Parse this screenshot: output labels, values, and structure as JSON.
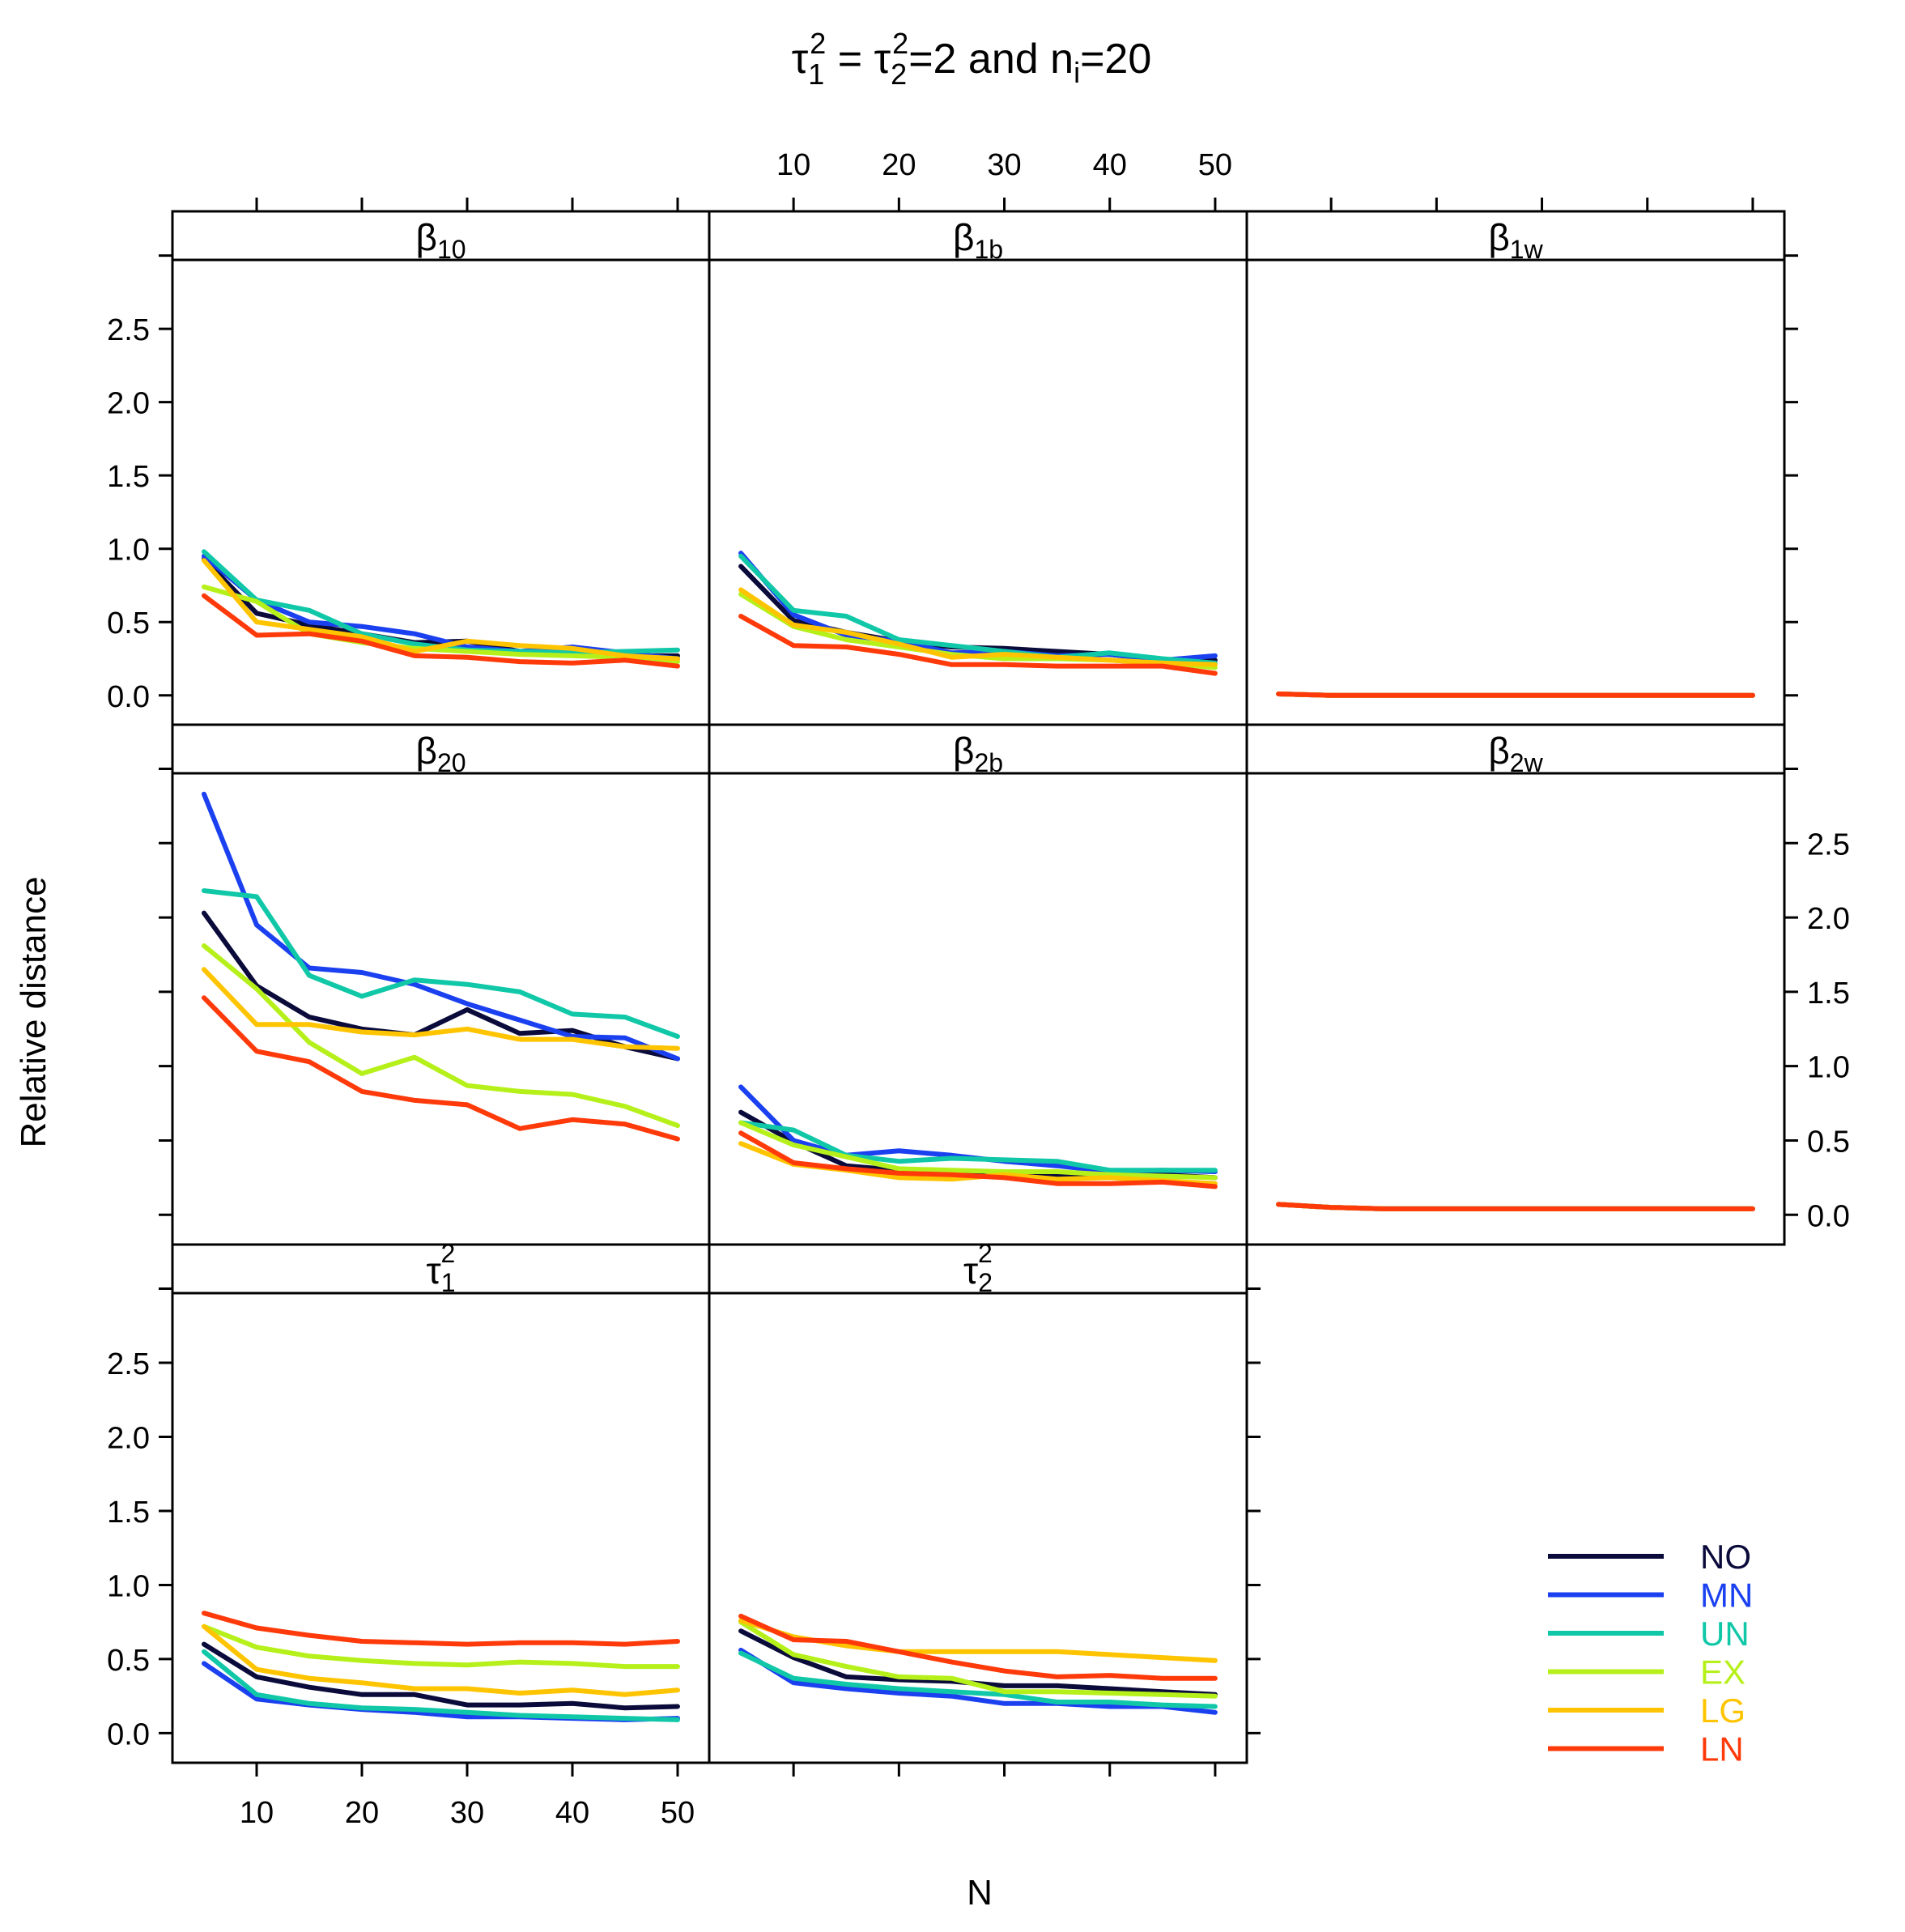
{
  "chart_data": {
    "type": "line",
    "title": "τ₁² = τ₂²=2 and nᵢ=20",
    "title_parts": {
      "sym1": "τ",
      "sup1": "2",
      "sub1": "1",
      "eq": " = ",
      "sym2": "τ",
      "sup2": "2",
      "sub2": "2",
      "rest1": "=2 and n",
      "sub3": "i",
      "rest2": "=20"
    },
    "xlabel": "N",
    "ylabel": "Relative distance",
    "xlim": [
      2,
      53
    ],
    "ylim": [
      -0.2,
      2.97
    ],
    "x_ticks": [
      10,
      20,
      30,
      40,
      50
    ],
    "y_ticks": [
      0.0,
      0.5,
      1.0,
      1.5,
      2.0,
      2.5
    ],
    "y_tick_labels": [
      "0.0",
      "0.5",
      "1.0",
      "1.5",
      "2.0",
      "2.5"
    ],
    "x_tick_labels": [
      "10",
      "20",
      "30",
      "40",
      "50"
    ],
    "x": [
      5,
      10,
      15,
      20,
      25,
      30,
      35,
      40,
      45,
      50
    ],
    "legend": [
      {
        "name": "NO",
        "color": "#0b0b3b"
      },
      {
        "name": "MN",
        "color": "#1a40f0"
      },
      {
        "name": "UN",
        "color": "#10c8a8"
      },
      {
        "name": "EX",
        "color": "#b6f01a"
      },
      {
        "name": "LG",
        "color": "#ffc400"
      },
      {
        "name": "LN",
        "color": "#ff3a0a"
      }
    ],
    "panels": [
      {
        "key": "b10",
        "strip": {
          "sym": "β",
          "sub": "10",
          "sup": ""
        },
        "series": [
          {
            "name": "NO",
            "values": [
              0.93,
              0.56,
              0.48,
              0.42,
              0.36,
              0.37,
              0.3,
              0.3,
              0.27,
              0.27
            ]
          },
          {
            "name": "MN",
            "values": [
              0.95,
              0.65,
              0.5,
              0.47,
              0.42,
              0.33,
              0.3,
              0.33,
              0.29,
              0.25
            ]
          },
          {
            "name": "UN",
            "values": [
              0.98,
              0.65,
              0.58,
              0.42,
              0.35,
              0.31,
              0.3,
              0.29,
              0.3,
              0.31
            ]
          },
          {
            "name": "EX",
            "values": [
              0.74,
              0.64,
              0.42,
              0.36,
              0.32,
              0.3,
              0.28,
              0.27,
              0.26,
              0.23
            ]
          },
          {
            "name": "LG",
            "values": [
              0.92,
              0.5,
              0.45,
              0.4,
              0.3,
              0.37,
              0.34,
              0.32,
              0.27,
              0.25
            ]
          },
          {
            "name": "LN",
            "values": [
              0.68,
              0.41,
              0.42,
              0.37,
              0.27,
              0.26,
              0.23,
              0.22,
              0.24,
              0.2
            ]
          }
        ]
      },
      {
        "key": "b1b",
        "strip": {
          "sym": "β",
          "sub": "1b",
          "sup": ""
        },
        "series": [
          {
            "name": "NO",
            "values": [
              0.88,
              0.51,
              0.43,
              0.37,
              0.33,
              0.32,
              0.3,
              0.28,
              0.24,
              0.24
            ]
          },
          {
            "name": "MN",
            "values": [
              0.97,
              0.55,
              0.41,
              0.37,
              0.29,
              0.3,
              0.27,
              0.28,
              0.24,
              0.27
            ]
          },
          {
            "name": "UN",
            "values": [
              0.95,
              0.58,
              0.54,
              0.38,
              0.34,
              0.3,
              0.26,
              0.29,
              0.25,
              0.22
            ]
          },
          {
            "name": "EX",
            "values": [
              0.69,
              0.47,
              0.38,
              0.33,
              0.28,
              0.25,
              0.25,
              0.24,
              0.22,
              0.19
            ]
          },
          {
            "name": "LG",
            "values": [
              0.72,
              0.48,
              0.43,
              0.35,
              0.26,
              0.28,
              0.26,
              0.24,
              0.22,
              0.21
            ]
          },
          {
            "name": "LN",
            "values": [
              0.54,
              0.34,
              0.33,
              0.28,
              0.21,
              0.21,
              0.2,
              0.2,
              0.2,
              0.15
            ]
          }
        ]
      },
      {
        "key": "b1w",
        "strip": {
          "sym": "β",
          "sub": "1w",
          "sup": ""
        },
        "series": [
          {
            "name": "NO",
            "values": [
              0.01,
              0.0,
              0.0,
              0.0,
              0.0,
              0.0,
              0.0,
              0.0,
              0.0,
              0.0
            ]
          },
          {
            "name": "MN",
            "values": [
              0.01,
              0.0,
              0.0,
              0.0,
              0.0,
              0.0,
              0.0,
              0.0,
              0.0,
              0.0
            ]
          },
          {
            "name": "UN",
            "values": [
              0.01,
              0.0,
              0.0,
              0.0,
              0.0,
              0.0,
              0.0,
              0.0,
              0.0,
              0.0
            ]
          },
          {
            "name": "EX",
            "values": [
              0.01,
              0.0,
              0.0,
              0.0,
              0.0,
              0.0,
              0.0,
              0.0,
              0.0,
              0.0
            ]
          },
          {
            "name": "LG",
            "values": [
              0.01,
              0.0,
              0.0,
              0.0,
              0.0,
              0.0,
              0.0,
              0.0,
              0.0,
              0.0
            ]
          },
          {
            "name": "LN",
            "values": [
              0.01,
              0.0,
              0.0,
              0.0,
              0.0,
              0.0,
              0.0,
              0.0,
              0.0,
              0.0
            ]
          }
        ]
      },
      {
        "key": "b20",
        "strip": {
          "sym": "β",
          "sub": "20",
          "sup": ""
        },
        "series": [
          {
            "name": "NO",
            "values": [
              2.03,
              1.54,
              1.33,
              1.25,
              1.21,
              1.38,
              1.22,
              1.24,
              1.13,
              1.05
            ]
          },
          {
            "name": "MN",
            "values": [
              2.83,
              1.95,
              1.66,
              1.63,
              1.55,
              1.42,
              1.31,
              1.2,
              1.19,
              1.05
            ]
          },
          {
            "name": "UN",
            "values": [
              2.18,
              2.14,
              1.61,
              1.47,
              1.58,
              1.55,
              1.5,
              1.35,
              1.33,
              1.2
            ]
          },
          {
            "name": "EX",
            "values": [
              1.81,
              1.52,
              1.16,
              0.95,
              1.06,
              0.87,
              0.83,
              0.81,
              0.73,
              0.6
            ]
          },
          {
            "name": "LG",
            "values": [
              1.65,
              1.28,
              1.28,
              1.23,
              1.21,
              1.25,
              1.18,
              1.18,
              1.13,
              1.12
            ]
          },
          {
            "name": "LN",
            "values": [
              1.46,
              1.1,
              1.03,
              0.83,
              0.77,
              0.74,
              0.58,
              0.64,
              0.61,
              0.51
            ]
          }
        ]
      },
      {
        "key": "b2b",
        "strip": {
          "sym": "β",
          "sub": "2b",
          "sup": ""
        },
        "series": [
          {
            "name": "NO",
            "values": [
              0.69,
              0.49,
              0.33,
              0.3,
              0.29,
              0.27,
              0.27,
              0.27,
              0.27,
              0.25
            ]
          },
          {
            "name": "MN",
            "values": [
              0.86,
              0.5,
              0.4,
              0.43,
              0.4,
              0.36,
              0.33,
              0.29,
              0.3,
              0.29
            ]
          },
          {
            "name": "UN",
            "values": [
              0.62,
              0.57,
              0.4,
              0.36,
              0.38,
              0.37,
              0.36,
              0.3,
              0.3,
              0.3
            ]
          },
          {
            "name": "EX",
            "values": [
              0.62,
              0.47,
              0.39,
              0.31,
              0.3,
              0.29,
              0.29,
              0.27,
              0.26,
              0.25
            ]
          },
          {
            "name": "LG",
            "values": [
              0.48,
              0.34,
              0.3,
              0.25,
              0.24,
              0.27,
              0.24,
              0.25,
              0.23,
              0.21
            ]
          },
          {
            "name": "LN",
            "values": [
              0.55,
              0.35,
              0.31,
              0.28,
              0.27,
              0.25,
              0.21,
              0.21,
              0.22,
              0.19
            ]
          }
        ]
      },
      {
        "key": "b2w",
        "strip": {
          "sym": "β",
          "sub": "2w",
          "sup": ""
        },
        "series": [
          {
            "name": "NO",
            "values": [
              0.07,
              0.05,
              0.04,
              0.04,
              0.04,
              0.04,
              0.04,
              0.04,
              0.04,
              0.04
            ]
          },
          {
            "name": "MN",
            "values": [
              0.07,
              0.05,
              0.04,
              0.04,
              0.04,
              0.04,
              0.04,
              0.04,
              0.04,
              0.04
            ]
          },
          {
            "name": "UN",
            "values": [
              0.07,
              0.05,
              0.04,
              0.04,
              0.04,
              0.04,
              0.04,
              0.04,
              0.04,
              0.04
            ]
          },
          {
            "name": "EX",
            "values": [
              0.07,
              0.05,
              0.04,
              0.04,
              0.04,
              0.04,
              0.04,
              0.04,
              0.04,
              0.04
            ]
          },
          {
            "name": "LG",
            "values": [
              0.07,
              0.05,
              0.04,
              0.04,
              0.04,
              0.04,
              0.04,
              0.04,
              0.04,
              0.04
            ]
          },
          {
            "name": "LN",
            "values": [
              0.07,
              0.05,
              0.04,
              0.04,
              0.04,
              0.04,
              0.04,
              0.04,
              0.04,
              0.04
            ]
          }
        ]
      },
      {
        "key": "t1",
        "strip": {
          "sym": "τ",
          "sub": "1",
          "sup": "2"
        },
        "series": [
          {
            "name": "NO",
            "values": [
              0.6,
              0.38,
              0.31,
              0.26,
              0.26,
              0.19,
              0.19,
              0.2,
              0.17,
              0.18
            ]
          },
          {
            "name": "MN",
            "values": [
              0.47,
              0.23,
              0.19,
              0.16,
              0.14,
              0.11,
              0.11,
              0.1,
              0.09,
              0.1
            ]
          },
          {
            "name": "UN",
            "values": [
              0.55,
              0.26,
              0.2,
              0.17,
              0.16,
              0.14,
              0.12,
              0.11,
              0.1,
              0.09
            ]
          },
          {
            "name": "EX",
            "values": [
              0.72,
              0.58,
              0.52,
              0.49,
              0.47,
              0.46,
              0.48,
              0.47,
              0.45,
              0.45
            ]
          },
          {
            "name": "LG",
            "values": [
              0.72,
              0.43,
              0.37,
              0.34,
              0.3,
              0.3,
              0.27,
              0.29,
              0.26,
              0.29
            ]
          },
          {
            "name": "LN",
            "values": [
              0.81,
              0.71,
              0.66,
              0.62,
              0.61,
              0.6,
              0.61,
              0.61,
              0.6,
              0.62
            ]
          }
        ]
      },
      {
        "key": "t2",
        "strip": {
          "sym": "τ",
          "sub": "2",
          "sup": "2"
        },
        "series": [
          {
            "name": "NO",
            "values": [
              0.69,
              0.51,
              0.38,
              0.36,
              0.35,
              0.32,
              0.32,
              0.3,
              0.28,
              0.26
            ]
          },
          {
            "name": "MN",
            "values": [
              0.56,
              0.34,
              0.3,
              0.27,
              0.25,
              0.2,
              0.2,
              0.18,
              0.18,
              0.14
            ]
          },
          {
            "name": "UN",
            "values": [
              0.54,
              0.37,
              0.33,
              0.3,
              0.28,
              0.26,
              0.21,
              0.21,
              0.19,
              0.18
            ]
          },
          {
            "name": "EX",
            "values": [
              0.75,
              0.53,
              0.45,
              0.38,
              0.37,
              0.28,
              0.28,
              0.27,
              0.26,
              0.25
            ]
          },
          {
            "name": "LG",
            "values": [
              0.76,
              0.65,
              0.59,
              0.55,
              0.55,
              0.55,
              0.55,
              0.53,
              0.51,
              0.49
            ]
          },
          {
            "name": "LN",
            "values": [
              0.79,
              0.63,
              0.62,
              0.55,
              0.48,
              0.42,
              0.38,
              0.39,
              0.37,
              0.37
            ]
          }
        ]
      }
    ]
  }
}
